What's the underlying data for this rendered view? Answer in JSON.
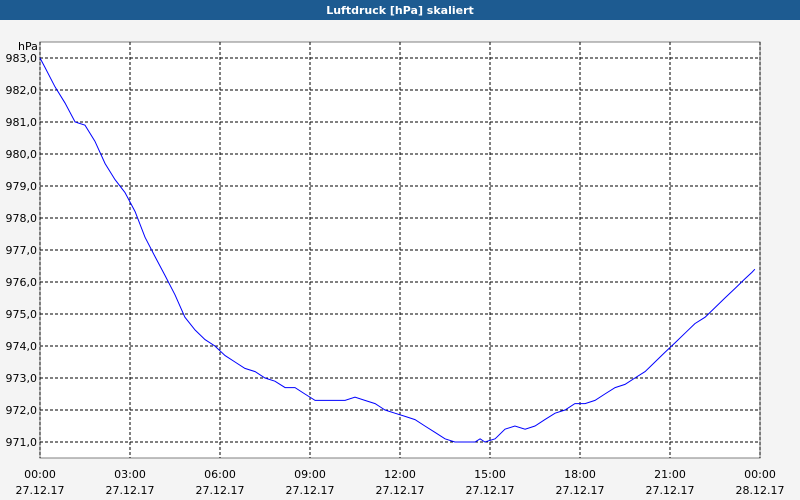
{
  "chart_data": {
    "type": "line",
    "title": "Luftdruck [hPa] skaliert",
    "y_label": "hPa",
    "xlim": [
      0,
      24
    ],
    "xticks": [
      {
        "value": 0,
        "label": "00:00",
        "date": "27.12.17"
      },
      {
        "value": 3,
        "label": "03:00",
        "date": "27.12.17"
      },
      {
        "value": 6,
        "label": "06:00",
        "date": "27.12.17"
      },
      {
        "value": 9,
        "label": "09:00",
        "date": "27.12.17"
      },
      {
        "value": 12,
        "label": "12:00",
        "date": "27.12.17"
      },
      {
        "value": 15,
        "label": "15:00",
        "date": "27.12.17"
      },
      {
        "value": 18,
        "label": "18:00",
        "date": "27.12.17"
      },
      {
        "value": 21,
        "label": "21:00",
        "date": "27.12.17"
      },
      {
        "value": 24,
        "label": "00:00",
        "date": "28.12.17"
      }
    ],
    "ylim": [
      970.5,
      983.5
    ],
    "yticks": [
      {
        "value": 971,
        "label": "971,0"
      },
      {
        "value": 972,
        "label": "972,0"
      },
      {
        "value": 973,
        "label": "973,0"
      },
      {
        "value": 974,
        "label": "974,0"
      },
      {
        "value": 975,
        "label": "975,0"
      },
      {
        "value": 976,
        "label": "976,0"
      },
      {
        "value": 977,
        "label": "977,0"
      },
      {
        "value": 978,
        "label": "978,0"
      },
      {
        "value": 979,
        "label": "979,0"
      },
      {
        "value": 980,
        "label": "980,0"
      },
      {
        "value": 981,
        "label": "981,0"
      },
      {
        "value": 982,
        "label": "982,0"
      },
      {
        "value": 983,
        "label": "983,0"
      }
    ],
    "grid": true,
    "x": [
      0,
      0.17,
      0.5,
      0.83,
      1.17,
      1.5,
      1.83,
      2.17,
      2.5,
      2.83,
      3.17,
      3.5,
      3.83,
      4.17,
      4.5,
      4.83,
      5.17,
      5.5,
      5.83,
      6.17,
      6.5,
      6.83,
      7.17,
      7.5,
      7.83,
      8.17,
      8.5,
      8.83,
      9.17,
      9.5,
      9.83,
      10.17,
      10.5,
      10.83,
      11.17,
      11.5,
      11.83,
      12.17,
      12.5,
      12.83,
      13.17,
      13.5,
      13.83,
      14.17,
      14.5,
      14.67,
      14.83,
      15.17,
      15.5,
      15.83,
      16.17,
      16.5,
      16.83,
      17.17,
      17.5,
      17.83,
      18.17,
      18.5,
      18.83,
      19.17,
      19.5,
      19.83,
      20.17,
      20.5,
      20.83,
      21.17,
      21.5,
      21.83,
      22.17,
      22.5,
      22.83,
      23.17,
      23.5,
      23.73,
      23.83
    ],
    "series": [
      {
        "color": "#0000ff",
        "values": [
          983.0,
          982.7,
          982.1,
          981.6,
          981.0,
          980.9,
          980.4,
          979.7,
          979.2,
          978.8,
          978.2,
          977.4,
          976.8,
          976.2,
          975.6,
          974.9,
          974.5,
          974.2,
          974.0,
          973.7,
          973.5,
          973.3,
          973.2,
          973.0,
          972.9,
          972.7,
          972.7,
          972.5,
          972.3,
          972.3,
          972.3,
          972.3,
          972.4,
          972.3,
          972.2,
          972.0,
          971.9,
          971.8,
          971.7,
          971.5,
          971.3,
          971.1,
          971.0,
          971.0,
          971.0,
          971.1,
          971.0,
          971.1,
          971.4,
          971.5,
          971.4,
          971.5,
          971.7,
          971.9,
          972.0,
          972.2,
          972.2,
          972.3,
          972.5,
          972.7,
          972.8,
          973.0,
          973.2,
          973.5,
          973.8,
          974.1,
          974.4,
          974.7,
          974.9,
          975.2,
          975.5,
          975.8,
          976.1,
          976.3,
          976.4
        ]
      }
    ]
  }
}
